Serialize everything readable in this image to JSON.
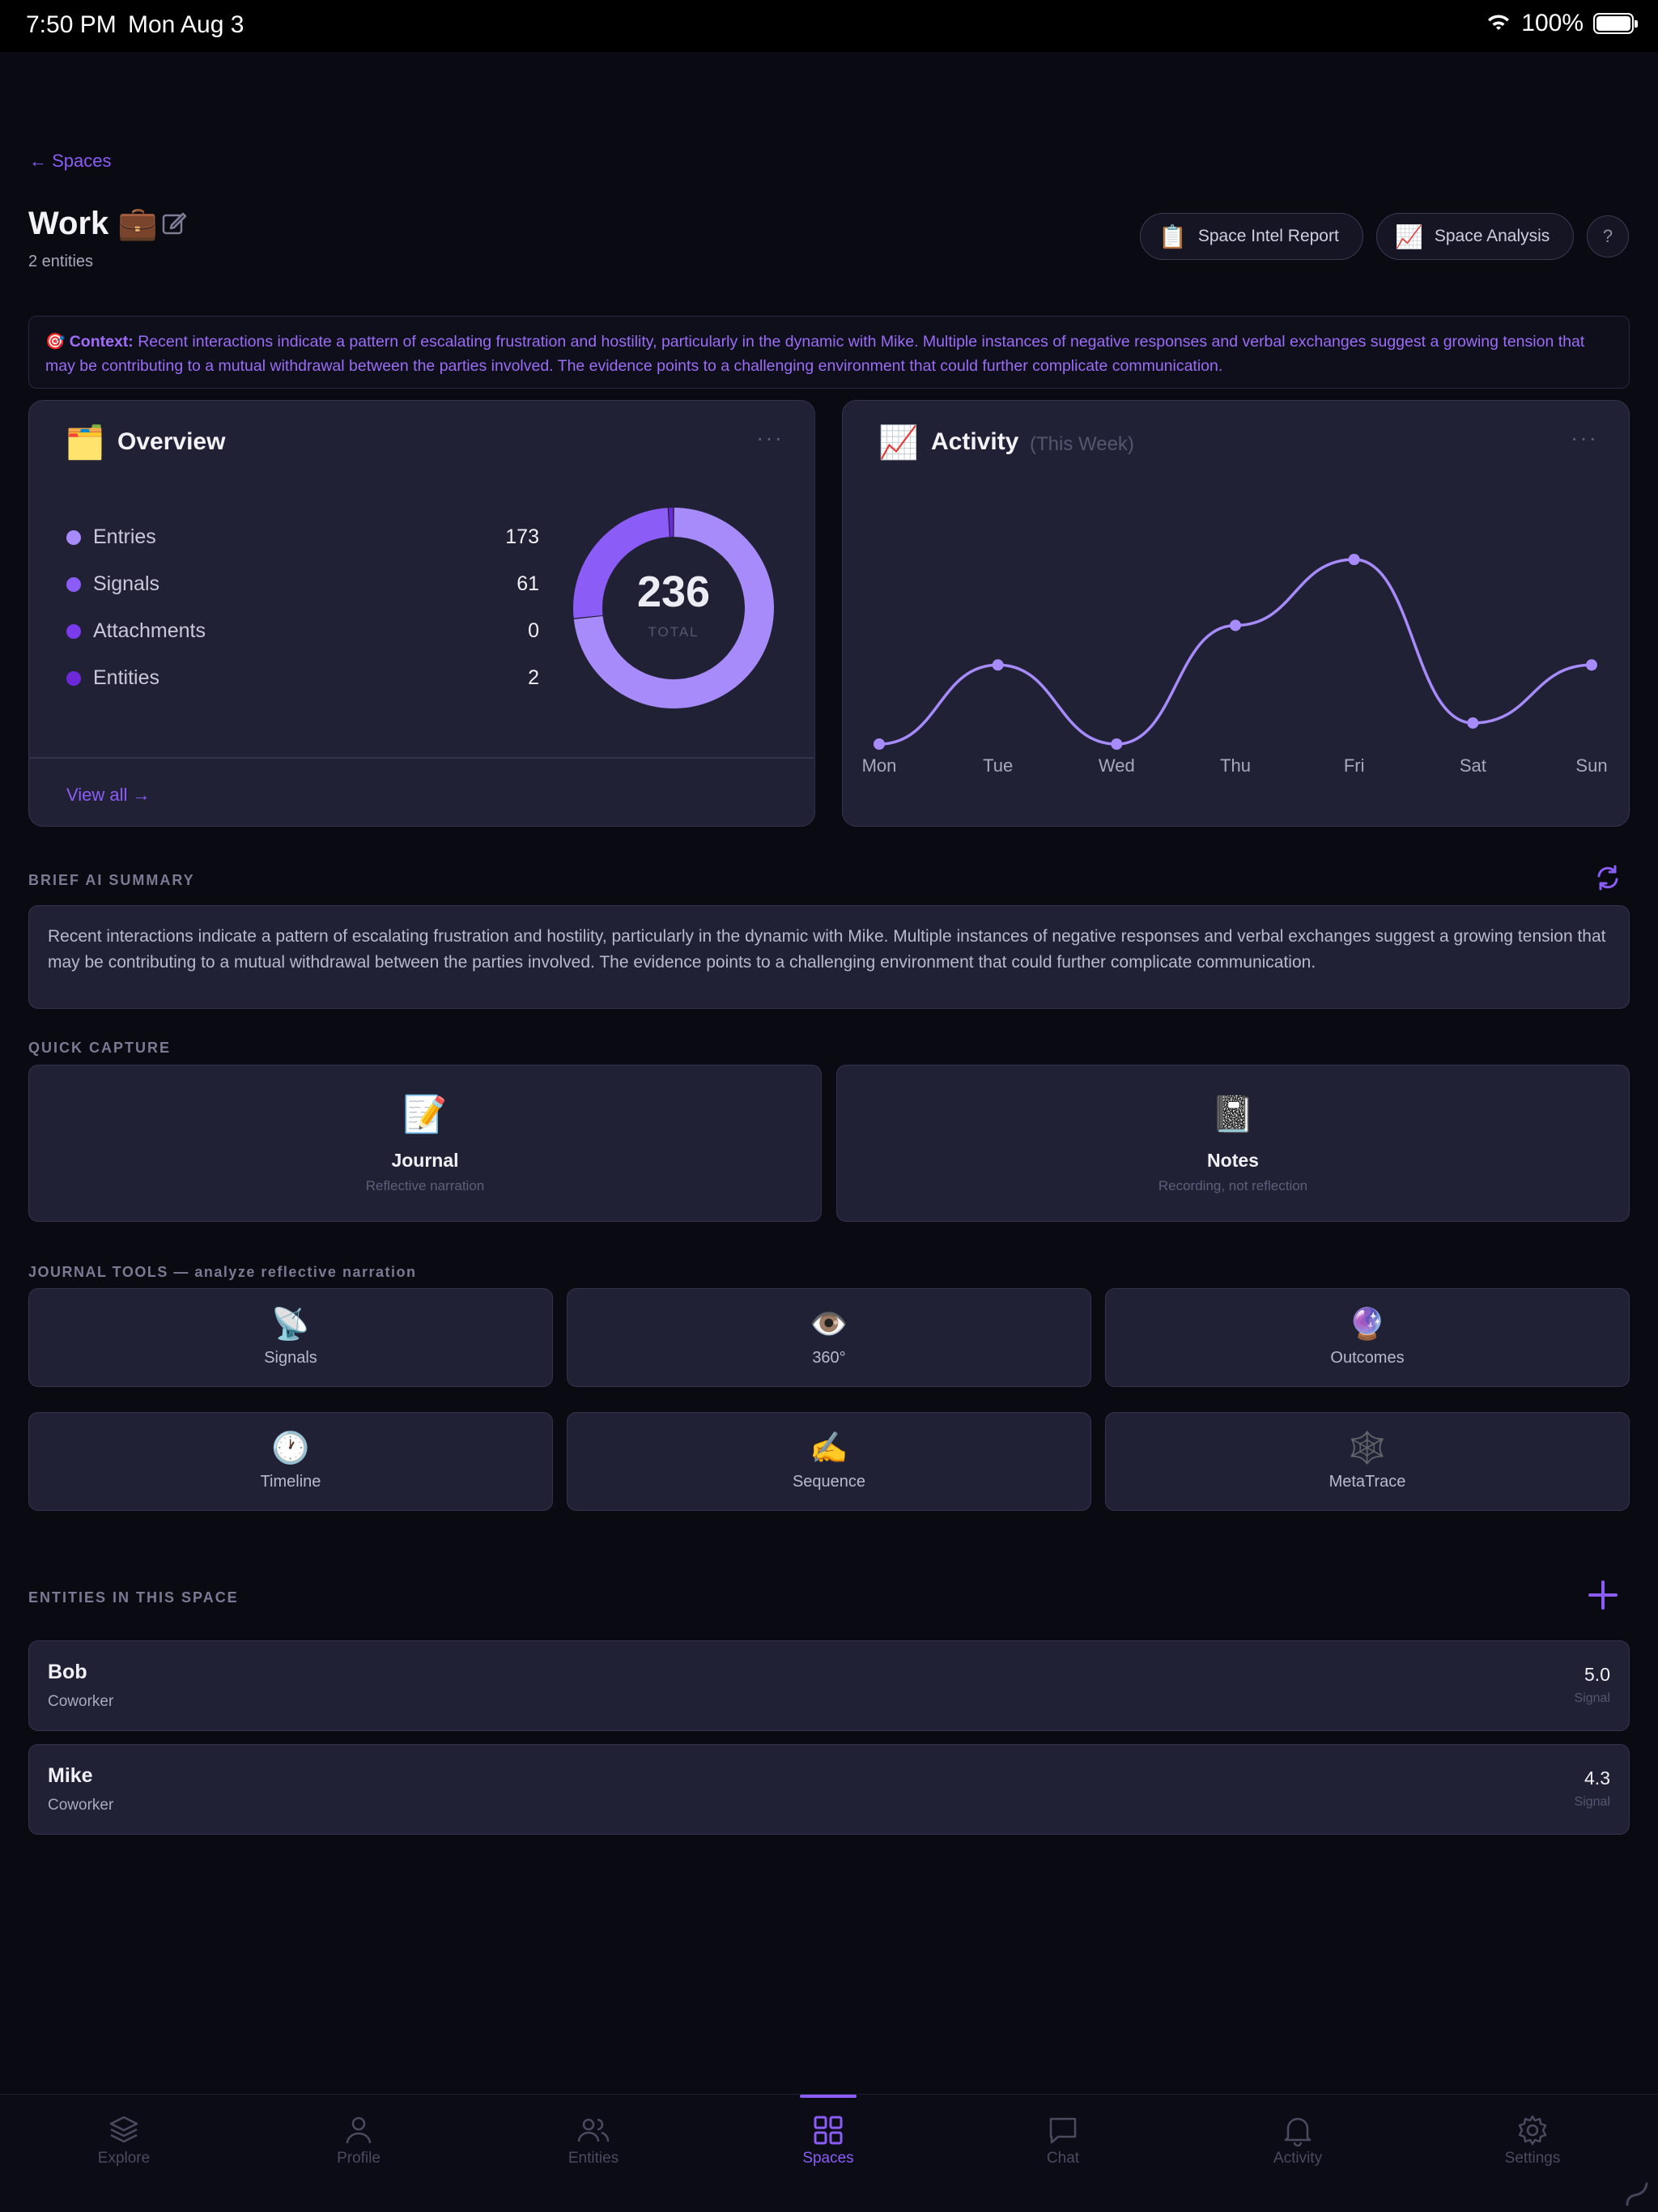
{
  "status_bar": {
    "time": "7:50 PM",
    "date": "Mon Aug 3",
    "battery": "100%"
  },
  "header": {
    "back_label": "← Spaces",
    "title": "Work 💼",
    "subtitle": "2 entities",
    "actions": [
      {
        "icon": "📋",
        "label": "Space Intel Report"
      },
      {
        "icon": "📈",
        "label": "Space Analysis"
      }
    ],
    "help_label": "?"
  },
  "context": {
    "icon": "🎯",
    "label": "Context:",
    "text": "Recent interactions indicate a pattern of escalating frustration and hostility, particularly in the dynamic with Mike. Multiple instances of negative responses and verbal exchanges suggest a growing tension that may be contributing to a mutual withdrawal between the parties involved. The evidence points to a challenging environment that could further complicate communication."
  },
  "overview": {
    "icon": "🗂️",
    "title": "Overview",
    "more": "···",
    "items": [
      {
        "label": "Entries",
        "value": "173",
        "color": "#a78bfa"
      },
      {
        "label": "Signals",
        "value": "61",
        "color": "#8b5cf6"
      },
      {
        "label": "Attachments",
        "value": "0",
        "color": "#7c3aed"
      },
      {
        "label": "Entities",
        "value": "2",
        "color": "#6d28d9"
      }
    ],
    "total_value": "236",
    "total_label": "TOTAL",
    "view_all": "View all →"
  },
  "activity": {
    "icon": "📈",
    "title": "Activity",
    "period": "(This Week)",
    "more": "···"
  },
  "chart_data": {
    "type": "line",
    "categories": [
      "Mon",
      "Tue",
      "Wed",
      "Thu",
      "Fri",
      "Sat",
      "Sun"
    ],
    "values": [
      0,
      3,
      0,
      4.5,
      7,
      0.8,
      3
    ],
    "color": "#a78bfa"
  },
  "summary": {
    "section_label": "BRIEF AI SUMMARY",
    "text": "Recent interactions indicate a pattern of escalating frustration and hostility, particularly in the dynamic with Mike. Multiple instances of negative responses and verbal exchanges suggest a growing tension that may be contributing to a mutual withdrawal between the parties involved. The evidence points to a challenging environment that could further complicate communication."
  },
  "quick_capture": {
    "section_label": "QUICK CAPTURE",
    "items": [
      {
        "emoji": "📝",
        "title": "Journal",
        "subtitle": "Reflective narration"
      },
      {
        "emoji": "📓",
        "title": "Notes",
        "subtitle": "Recording, not reflection"
      }
    ]
  },
  "journal_tools": {
    "section_label": "JOURNAL TOOLS — analyze reflective narration",
    "items": [
      {
        "emoji": "📡",
        "label": "Signals"
      },
      {
        "emoji": "👁️",
        "label": "360°"
      },
      {
        "emoji": "🔮",
        "label": "Outcomes"
      },
      {
        "emoji": "🕐",
        "label": "Timeline"
      },
      {
        "emoji": "✍️",
        "label": "Sequence"
      },
      {
        "emoji": "🕸️",
        "label": "MetaTrace"
      }
    ]
  },
  "entities": {
    "section_label": "ENTITIES IN THIS SPACE",
    "add_label": "+",
    "items": [
      {
        "name": "Bob",
        "role": "Coworker",
        "score": "5.0",
        "score_label": "Signal"
      },
      {
        "name": "Mike",
        "role": "Coworker",
        "score": "4.3",
        "score_label": "Signal"
      }
    ]
  },
  "tabbar": {
    "active": "Spaces",
    "tabs": [
      {
        "label": "Explore",
        "icon": "layers-icon"
      },
      {
        "label": "Profile",
        "icon": "person-icon"
      },
      {
        "label": "Entities",
        "icon": "people-icon"
      },
      {
        "label": "Spaces",
        "icon": "grid-icon"
      },
      {
        "label": "Chat",
        "icon": "chat-icon"
      },
      {
        "label": "Activity",
        "icon": "bell-icon"
      },
      {
        "label": "Settings",
        "icon": "gear-icon"
      }
    ]
  },
  "colors": {
    "accent": "#8b5cf6",
    "background": "#0a0a12",
    "card": "#212136"
  }
}
